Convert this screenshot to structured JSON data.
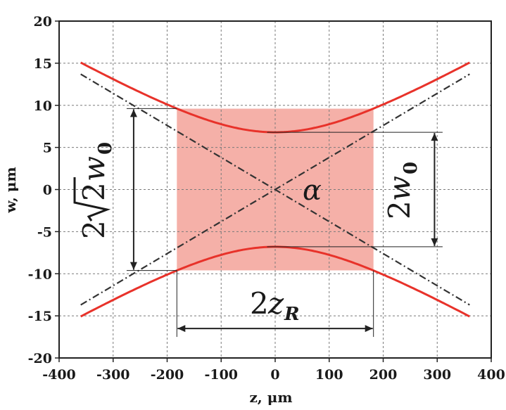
{
  "chart_data": {
    "type": "line",
    "title": "",
    "xlabel": "z, μm",
    "ylabel": "w, μm",
    "xlim": [
      -400,
      400
    ],
    "ylim": [
      -20,
      20
    ],
    "xticks": [
      -400,
      -300,
      -200,
      -100,
      0,
      100,
      200,
      300,
      400
    ],
    "yticks": [
      -20,
      -15,
      -10,
      -5,
      0,
      5,
      10,
      15,
      20
    ],
    "xtick_labels": [
      "-400",
      "-300",
      "-200",
      "-100",
      "0",
      "100",
      "200",
      "300",
      "400"
    ],
    "ytick_labels": [
      "-20",
      "-15",
      "-10",
      "-5",
      "0",
      "5",
      "10",
      "15",
      "20"
    ],
    "grid": true,
    "beam_waist_w0": 6.8,
    "rayleigh_range_zR": 182,
    "series": [
      {
        "style": "solid",
        "color": "#e8322a",
        "x": [
          -360,
          -300,
          -250,
          -200,
          -182,
          -150,
          -100,
          -50,
          0,
          50,
          100,
          150,
          182,
          200,
          250,
          300,
          360
        ],
        "y_upper": [
          15.2,
          13.0,
          11.2,
          10.0,
          9.6,
          8.8,
          7.7,
          7.0,
          6.8,
          7.0,
          7.7,
          8.8,
          9.6,
          10.0,
          11.2,
          13.0,
          15.2
        ],
        "y_lower": [
          -15.2,
          -13.0,
          -11.2,
          -10.0,
          -9.6,
          -8.8,
          -7.7,
          -7.0,
          -6.8,
          -7.0,
          -7.7,
          -8.8,
          -9.6,
          -10.0,
          -11.2,
          -13.0,
          -15.2
        ]
      },
      {
        "style": "dash-dot",
        "color": "#333333",
        "x": [
          -360,
          360
        ],
        "y": [
          -13.7,
          13.7
        ]
      },
      {
        "style": "dash-dot",
        "color": "#333333",
        "x": [
          -360,
          360
        ],
        "y": [
          13.7,
          -13.7
        ]
      }
    ],
    "shaded_region": {
      "x": [
        -182,
        182
      ],
      "y": [
        -9.6,
        9.6
      ],
      "color": "#f4a79f"
    },
    "annotations": {
      "alpha": "α",
      "two": "2",
      "w": "w",
      "zero_sub": "0",
      "z": "z",
      "r_sub": "R"
    },
    "colors": {
      "beam": "#e8322a",
      "asymptote": "#333333",
      "shade": "#f4a79f",
      "grid": "#7a7a7a"
    }
  }
}
